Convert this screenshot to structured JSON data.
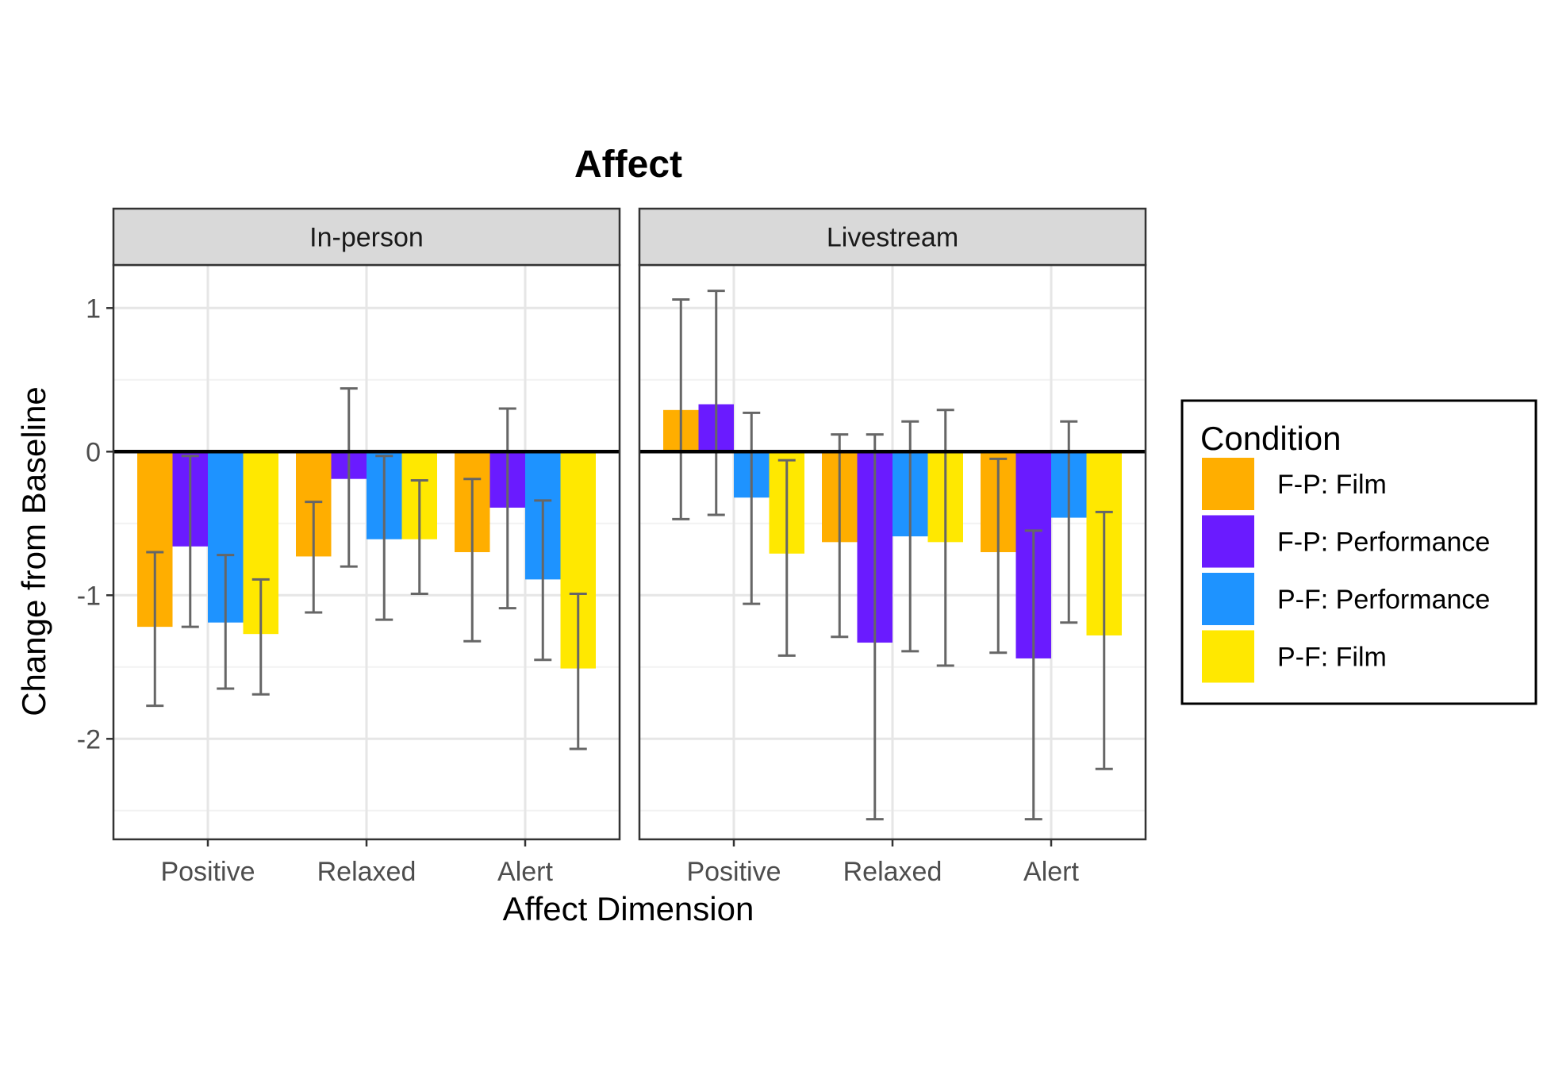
{
  "chart_data": {
    "type": "bar",
    "title": "Affect",
    "xlabel": "Affect Dimension",
    "ylabel": "Change from Baseline",
    "ylim": [
      -2.7,
      1.3
    ],
    "yticks": [
      1,
      0,
      -1,
      -2
    ],
    "ytick_labels": [
      "1",
      "0",
      "-1",
      "-2"
    ],
    "categories": [
      "Positive",
      "Relaxed",
      "Alert"
    ],
    "grid": true,
    "legend": {
      "title": "Condition",
      "position": "right",
      "items": [
        {
          "label": "F-P: Film",
          "color": "#FFAE00"
        },
        {
          "label": "F-P: Performance",
          "color": "#6A1BFF"
        },
        {
          "label": "P-F: Performance",
          "color": "#1E93FF"
        },
        {
          "label": "P-F: Film",
          "color": "#FFE800"
        }
      ]
    },
    "panels": [
      {
        "name": "In-person",
        "series": [
          {
            "name": "F-P: Film",
            "values": [
              -1.22,
              -0.73,
              -0.7
            ],
            "err_low": [
              -1.77,
              -1.12,
              -1.32
            ],
            "err_high": [
              -0.7,
              -0.35,
              -0.19
            ]
          },
          {
            "name": "F-P: Performance",
            "values": [
              -0.66,
              -0.19,
              -0.39
            ],
            "err_low": [
              -1.22,
              -0.8,
              -1.09
            ],
            "err_high": [
              -0.03,
              0.44,
              0.3
            ]
          },
          {
            "name": "P-F: Performance",
            "values": [
              -1.19,
              -0.61,
              -0.89
            ],
            "err_low": [
              -1.65,
              -1.17,
              -1.45
            ],
            "err_high": [
              -0.72,
              -0.03,
              -0.34
            ]
          },
          {
            "name": "P-F: Film",
            "values": [
              -1.27,
              -0.61,
              -1.51
            ],
            "err_low": [
              -1.69,
              -0.99,
              -2.07
            ],
            "err_high": [
              -0.89,
              -0.2,
              -0.99
            ]
          }
        ]
      },
      {
        "name": "Livestream",
        "series": [
          {
            "name": "F-P: Film",
            "values": [
              0.29,
              -0.63,
              -0.7
            ],
            "err_low": [
              -0.47,
              -1.29,
              -1.4
            ],
            "err_high": [
              1.06,
              0.12,
              -0.05
            ]
          },
          {
            "name": "F-P: Performance",
            "values": [
              0.33,
              -1.33,
              -1.44
            ],
            "err_low": [
              -0.44,
              -2.56,
              -2.56
            ],
            "err_high": [
              1.12,
              0.12,
              -0.55
            ]
          },
          {
            "name": "P-F: Performance",
            "values": [
              -0.32,
              -0.59,
              -0.46
            ],
            "err_low": [
              -1.06,
              -1.39,
              -1.19
            ],
            "err_high": [
              0.27,
              0.21,
              0.21
            ]
          },
          {
            "name": "P-F: Film",
            "values": [
              -0.71,
              -0.63,
              -1.28
            ],
            "err_low": [
              -1.42,
              -1.49,
              -2.21
            ],
            "err_high": [
              -0.06,
              0.29,
              -0.42
            ]
          }
        ]
      }
    ]
  }
}
